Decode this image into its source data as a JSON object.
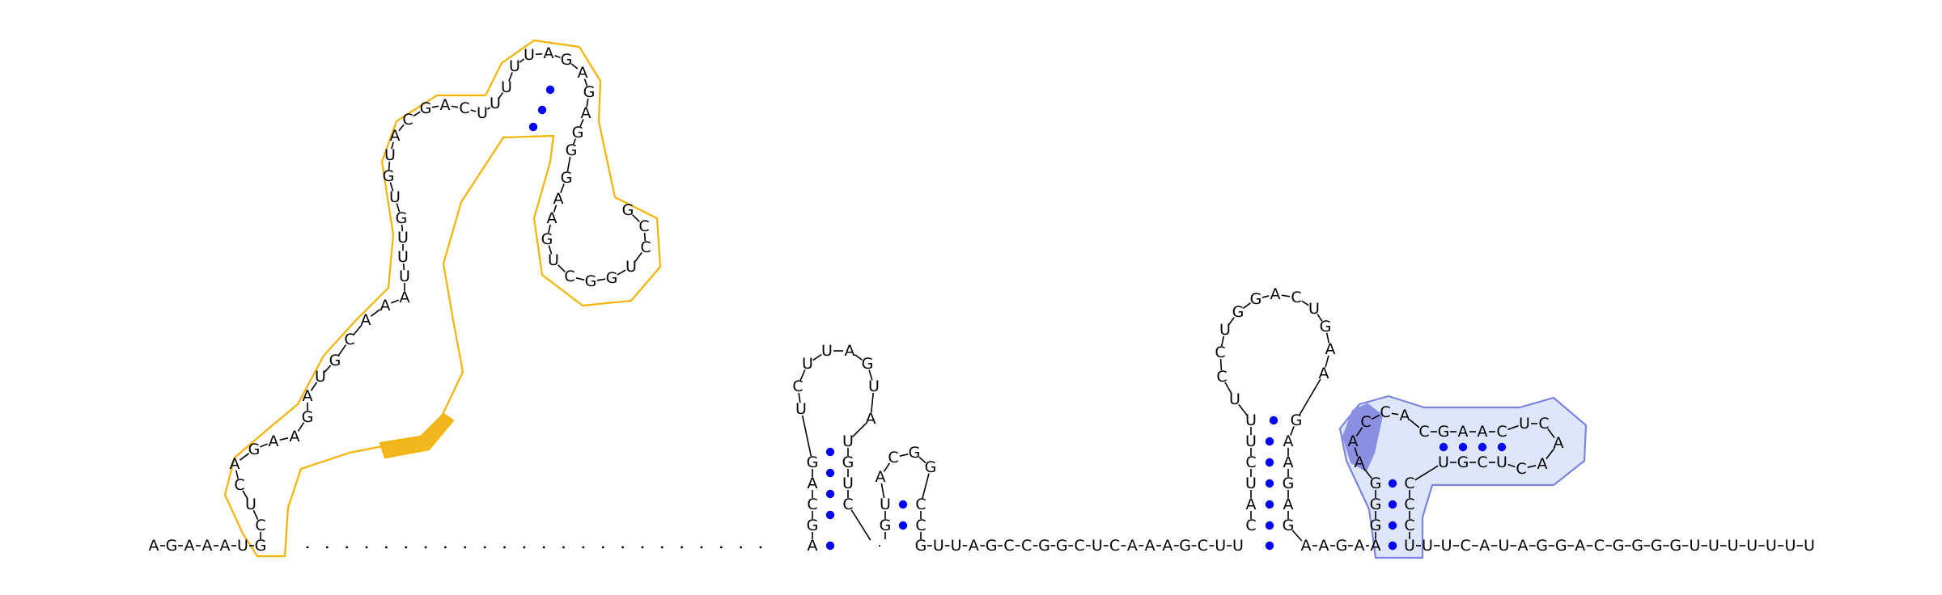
{
  "colors": {
    "text": "#000000",
    "base_pair_dot": "#0000ff",
    "highlight_orange_stroke": "#f5b300",
    "highlight_orange_fill": "#f2b61e",
    "highlight_blue_stroke": "#7b84e0",
    "highlight_blue_fill": "#dde6fb",
    "highlight_blue_dark": "#8b8fe2"
  },
  "structure": {
    "five_prime": "AGAAAUG",
    "left_domain": {
      "stem_5p": "CUCAGAAG",
      "loop_a": "AUGCAAA",
      "branch_5p": "UUUGUGUA",
      "loop_b": "CGACU",
      "hairpin_stem_5p": "UUU",
      "hairpin_loop": "UAGAG",
      "hairpin_stem_3p": "AGG"
    },
    "unpaired_gap_length": 24,
    "middle_left_hairpin": {
      "stem_5p": "AGCAG",
      "loop": "UCUUAGU",
      "stem_3p": "AUGUC"
    },
    "middle_right_hairpin": {
      "stem_5p": "GU",
      "loop": "ACGG",
      "stem_3p": "CC"
    },
    "linker": "GUUAGCCGGCUCAAAGCUU",
    "right_hairpin": {
      "stem_5p": "CAUCUU",
      "loop": "UCCUGGACUGAA",
      "stem_3p": "GAAGAG"
    },
    "linker2": "AAGA",
    "pseudoknot_domain": {
      "stem_5p": "AGGG",
      "loop": "AACCACGAACUCAACUCGU",
      "stem_3p": "CCCU"
    },
    "three_prime": "UUCAUAGGACGGGGUUUUUUU"
  }
}
